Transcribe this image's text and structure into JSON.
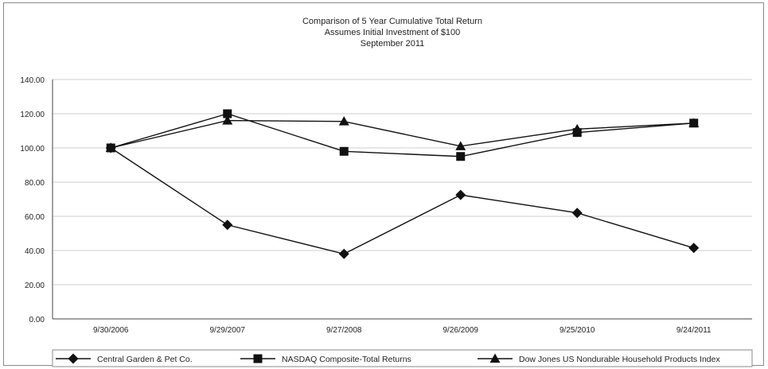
{
  "chart_data": {
    "type": "line",
    "title": [
      "Comparison of 5 Year Cumulative Total Return",
      "Assumes Initial Investment of $100",
      "September 2011"
    ],
    "categories": [
      "9/30/2006",
      "9/29/2007",
      "9/27/2008",
      "9/26/2009",
      "9/25/2010",
      "9/24/2011"
    ],
    "y_ticks": [
      "0.00",
      "20.00",
      "40.00",
      "60.00",
      "80.00",
      "100.00",
      "120.00",
      "140.00"
    ],
    "ylim": [
      0,
      140
    ],
    "grid": true,
    "legend_position": "bottom",
    "series": [
      {
        "name": "Central Garden & Pet Co.",
        "marker": "diamond",
        "values": [
          100,
          55,
          38,
          72.5,
          62,
          41.5
        ]
      },
      {
        "name": "NASDAQ Composite-Total Returns",
        "marker": "square",
        "values": [
          100,
          120,
          98,
          95,
          109,
          114.5
        ]
      },
      {
        "name": "Dow Jones US Nondurable Household Products Index",
        "marker": "triangle",
        "values": [
          100,
          116,
          115.5,
          101,
          111,
          114.5
        ]
      }
    ]
  }
}
